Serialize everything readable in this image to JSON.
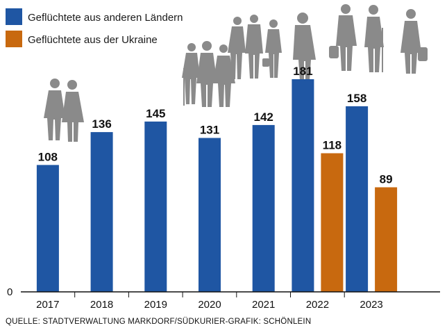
{
  "chart_data": {
    "type": "bar",
    "categories": [
      "2017",
      "2018",
      "2019",
      "2020",
      "2021",
      "2022",
      "2023"
    ],
    "series": [
      {
        "name": "Geflüchtete aus anderen Ländern",
        "color": "#1f56a3",
        "values": [
          108,
          136,
          145,
          131,
          142,
          181,
          158
        ]
      },
      {
        "name": "Geflüchtete aus der Ukraine",
        "color": "#c8690f",
        "values": [
          null,
          null,
          null,
          null,
          null,
          118,
          89
        ]
      }
    ],
    "y_zero_label": "0",
    "ylim": [
      0,
      181
    ],
    "grid": false,
    "legend_position": "top-left",
    "title": "",
    "xlabel": "",
    "ylabel": ""
  },
  "source": "QUELLE: STADTVERWALTUNG MARKDORF/SÜDKURIER-GRAFIK: SCHÖNLEIN",
  "icons": [
    "people-silhouettes-icon"
  ]
}
